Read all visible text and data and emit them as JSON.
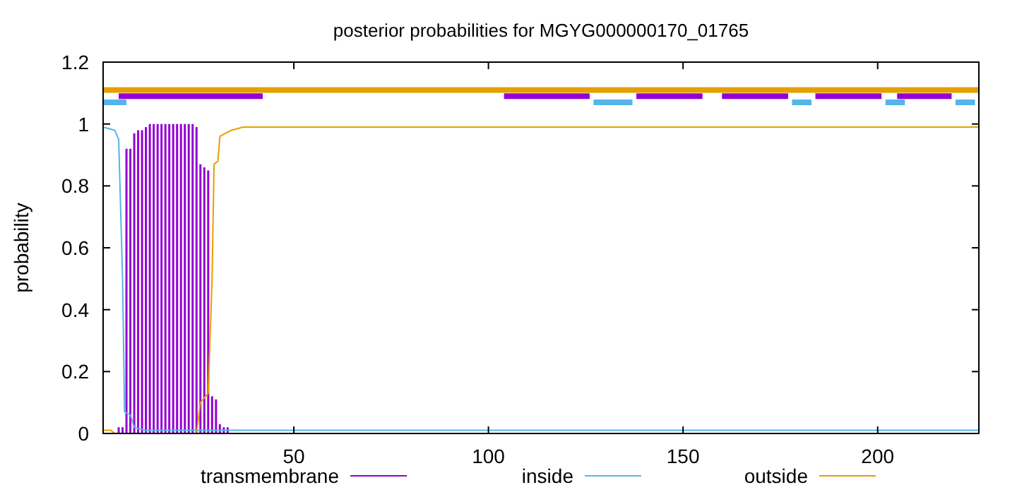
{
  "chart_data": {
    "type": "line",
    "title": "posterior probabilities for MGYG000000170_01765",
    "ylabel": "probability",
    "xlim": [
      1,
      226
    ],
    "xticks": [
      50,
      100,
      150,
      200
    ],
    "ylim": [
      0,
      1.2
    ],
    "yticks": [
      0,
      0.2,
      0.4,
      0.6,
      0.8,
      1,
      1.2
    ],
    "legend": "bottom",
    "grid": false,
    "series": [
      {
        "name": "transmembrane",
        "type": "bar",
        "color": "#9400d3",
        "x": [
          5,
          6,
          7,
          8,
          9,
          10,
          11,
          12,
          13,
          14,
          15,
          16,
          17,
          18,
          19,
          20,
          21,
          22,
          23,
          24,
          25,
          26,
          27,
          28,
          29,
          30,
          31,
          32,
          33
        ],
        "values": [
          0.02,
          0.02,
          0.92,
          0.92,
          0.97,
          0.98,
          0.98,
          0.99,
          1,
          1,
          1,
          1,
          1,
          1,
          1,
          1,
          1,
          1,
          1,
          1,
          0.99,
          0.87,
          0.86,
          0.85,
          0.12,
          0.11,
          0.03,
          0.02,
          0.02
        ]
      },
      {
        "name": "inside",
        "color": "#56b4e9",
        "x": [
          1,
          4,
          5,
          6,
          6.5,
          8,
          9,
          12,
          226
        ],
        "values": [
          0.99,
          0.98,
          0.95,
          0.5,
          0.07,
          0.06,
          0.02,
          0.01,
          0.01
        ]
      },
      {
        "name": "outside",
        "color": "#e69f00",
        "x": [
          1,
          3,
          4,
          25,
          26,
          28,
          29,
          29.5,
          30.5,
          31,
          34,
          37,
          226
        ],
        "values": [
          0.01,
          0.01,
          0,
          0,
          0.1,
          0.13,
          0.5,
          0.87,
          0.88,
          0.96,
          0.98,
          0.99,
          0.99
        ]
      },
      {
        "color": "#e69f00",
        "x": [
          1,
          226
        ],
        "values": [
          1.11,
          1.11
        ]
      },
      {
        "color": "#9400d3",
        "x": [
          5,
          42,
          43,
          104,
          126,
          127,
          138,
          155,
          156,
          160,
          177,
          178,
          184,
          201,
          202,
          205,
          219
        ],
        "values": [
          1.09,
          1.09,
          null,
          1.09,
          1.09,
          null,
          1.09,
          1.09,
          null,
          1.09,
          1.09,
          null,
          1.09,
          1.09,
          null,
          1.09,
          1.09
        ]
      },
      {
        "color": "#56b4e9",
        "x": [
          1,
          7,
          8,
          127,
          137,
          138,
          178,
          183,
          184,
          202,
          207,
          208,
          220,
          225
        ],
        "values": [
          1.07,
          1.07,
          null,
          1.07,
          1.07,
          null,
          1.07,
          1.07,
          null,
          1.07,
          1.07,
          null,
          1.07,
          1.07
        ]
      }
    ]
  }
}
